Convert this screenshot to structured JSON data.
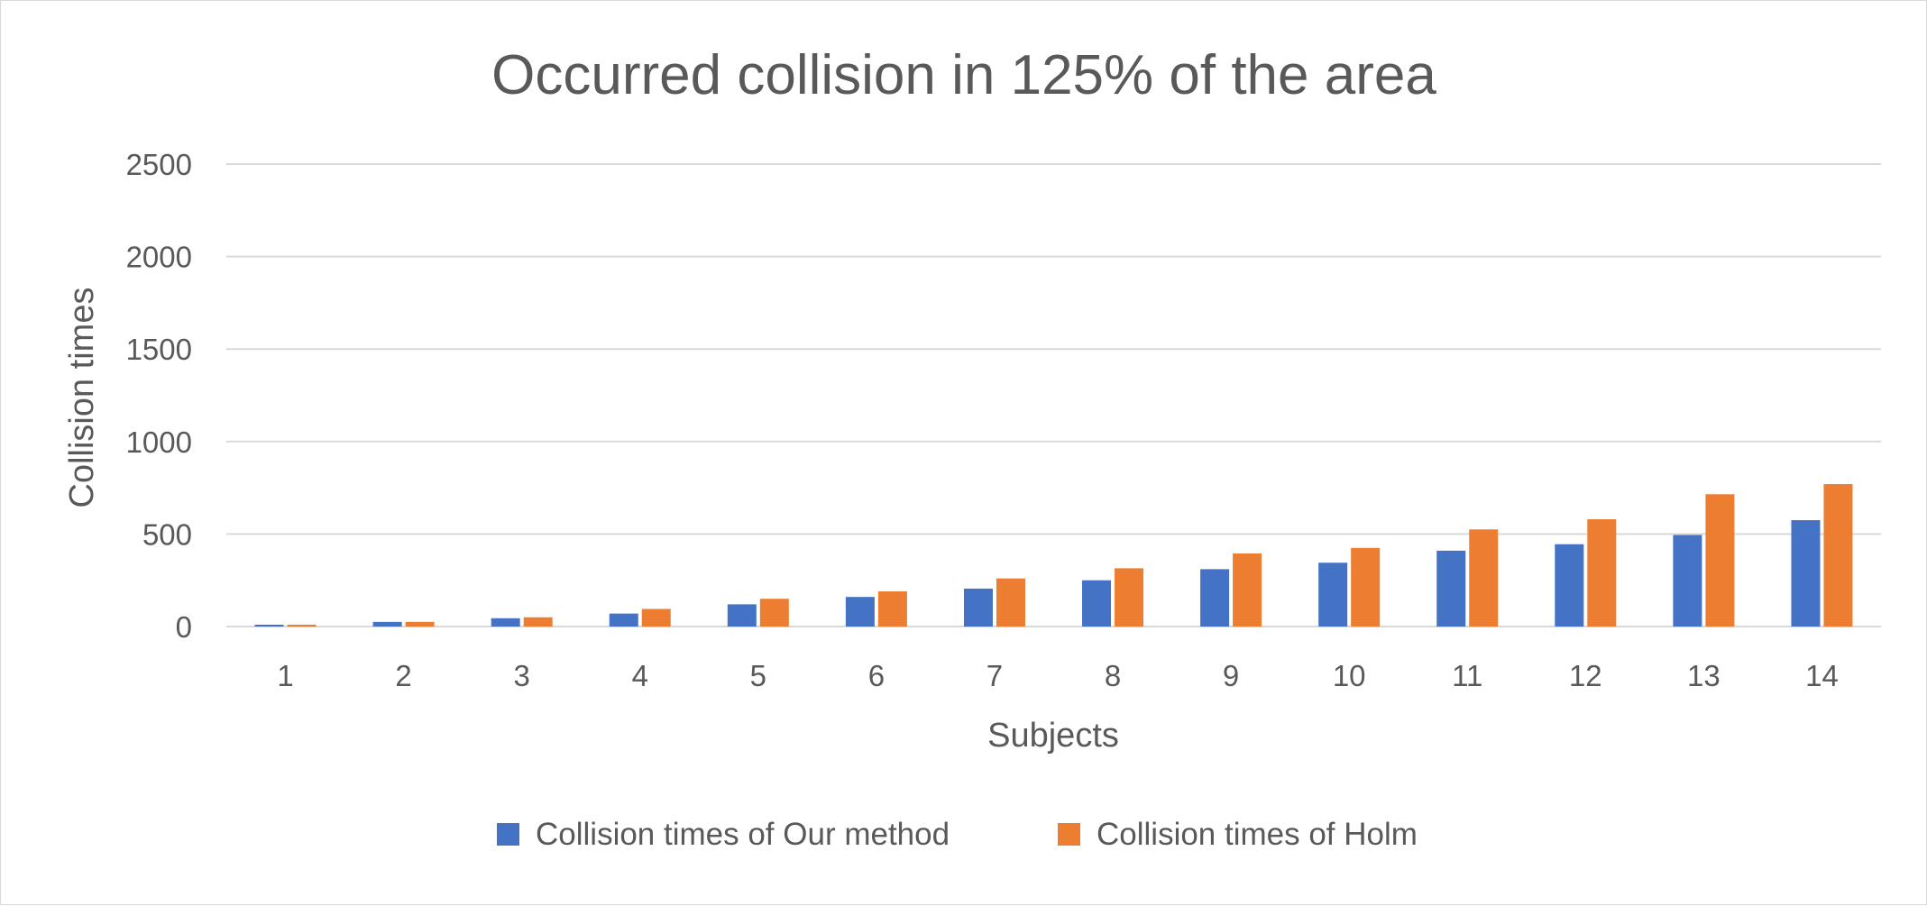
{
  "chart_data": {
    "type": "bar",
    "title": "Occurred collision in 125% of the area",
    "xlabel": "Subjects",
    "ylabel": "Collision times",
    "categories": [
      "1",
      "2",
      "3",
      "4",
      "5",
      "6",
      "7",
      "8",
      "9",
      "10",
      "11",
      "12",
      "13",
      "14"
    ],
    "ylim": [
      0,
      2500
    ],
    "yticks": [
      "0",
      "500",
      "1000",
      "1500",
      "2000",
      "2500"
    ],
    "grid": true,
    "legend_position": "bottom",
    "series": [
      {
        "name": "Collision times of Our method",
        "color": "#4472C4",
        "values": [
          10,
          25,
          45,
          70,
          120,
          160,
          205,
          250,
          310,
          345,
          410,
          445,
          495,
          575
        ]
      },
      {
        "name": "Collision times of Holm",
        "color": "#ED7D31",
        "values": [
          10,
          25,
          50,
          95,
          150,
          190,
          260,
          315,
          395,
          425,
          525,
          580,
          715,
          770
        ]
      }
    ]
  }
}
